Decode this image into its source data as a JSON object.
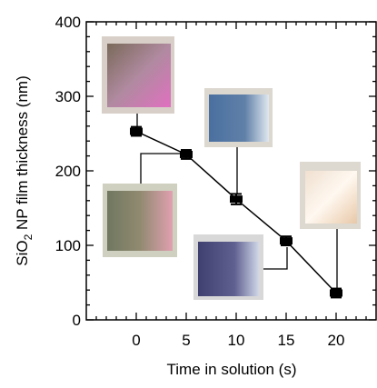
{
  "chart_data": {
    "type": "line",
    "xlabel": "Time in solution (s)",
    "ylabel": {
      "main": "SiO",
      "sub": "2",
      "rest": " NP film thickness (nm)"
    },
    "x": [
      0,
      5,
      10,
      15,
      20
    ],
    "series": [
      {
        "color": "#000000",
        "values": [
          253,
          222,
          162,
          106,
          36
        ],
        "errors": [
          6,
          6,
          7,
          6,
          6
        ]
      }
    ],
    "xlim": [
      -5,
      24
    ],
    "ylim": [
      0,
      400
    ],
    "xticks": [
      0,
      5,
      10,
      15,
      20
    ],
    "yticks": [
      0,
      100,
      200,
      300,
      400
    ]
  }
}
